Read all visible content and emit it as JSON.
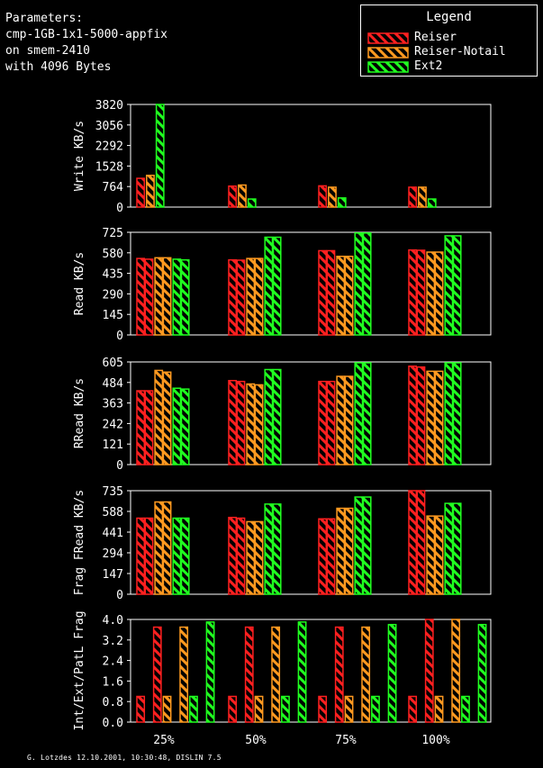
{
  "params": {
    "lines": [
      "Parameters:",
      "cmp-1GB-1x1-5000-appfix",
      "on smem-2410",
      "with 4096 Bytes"
    ]
  },
  "legend": {
    "title": "Legend",
    "entries": [
      {
        "label": "Reiser",
        "color": "#ff2020"
      },
      {
        "label": "Reiser-Notail",
        "color": "#ff9a20"
      },
      {
        "label": "Ext2",
        "color": "#20ff20"
      }
    ]
  },
  "footer": "G. Lotzdes 12.10.2001, 10:30:48, DISLIN 7.5",
  "chart_data": [
    {
      "type": "bar",
      "ylabel": "Write KB/s",
      "yticks": [
        "0",
        "764",
        "1528",
        "2292",
        "3056",
        "3820"
      ],
      "ylim": [
        0,
        3820
      ],
      "categories": [
        "25%",
        "50%",
        "75%",
        "100%"
      ],
      "series": [
        {
          "name": "Reiser",
          "values": [
            [
              1070
            ],
            [
              780
            ],
            [
              790
            ],
            [
              740
            ]
          ]
        },
        {
          "name": "Reiser-Notail",
          "values": [
            [
              1180
            ],
            [
              820
            ],
            [
              740
            ],
            [
              740
            ]
          ]
        },
        {
          "name": "Ext2",
          "values": [
            [
              3820
            ],
            [
              300
            ],
            [
              340
            ],
            [
              300
            ]
          ]
        }
      ]
    },
    {
      "type": "bar",
      "ylabel": "Read KB/s",
      "yticks": [
        "0",
        "145",
        "290",
        "435",
        "580",
        "725"
      ],
      "ylim": [
        0,
        725
      ],
      "categories": [
        "25%",
        "50%",
        "75%",
        "100%"
      ],
      "series": [
        {
          "name": "Reiser",
          "values": [
            [
              540,
              535
            ],
            [
              530,
              528
            ],
            [
              595,
              595
            ],
            [
              600,
              598
            ]
          ]
        },
        {
          "name": "Reiser-Notail",
          "values": [
            [
              545,
              545
            ],
            [
              540,
              540
            ],
            [
              555,
              555
            ],
            [
              585,
              585
            ]
          ]
        },
        {
          "name": "Ext2",
          "values": [
            [
              535,
              530
            ],
            [
              690,
              690
            ],
            [
              720,
              720
            ],
            [
              700,
              700
            ]
          ]
        }
      ]
    },
    {
      "type": "bar",
      "ylabel": "RRead KB/s",
      "yticks": [
        "0",
        "121",
        "242",
        "363",
        "484",
        "605"
      ],
      "ylim": [
        0,
        605
      ],
      "categories": [
        "25%",
        "50%",
        "75%",
        "100%"
      ],
      "series": [
        {
          "name": "Reiser",
          "values": [
            [
              435,
              435
            ],
            [
              495,
              490
            ],
            [
              490,
              490
            ],
            [
              580,
              575
            ]
          ]
        },
        {
          "name": "Reiser-Notail",
          "values": [
            [
              555,
              545
            ],
            [
              475,
              470
            ],
            [
              520,
              520
            ],
            [
              550,
              550
            ]
          ]
        },
        {
          "name": "Ext2",
          "values": [
            [
              450,
              445
            ],
            [
              560,
              560
            ],
            [
              600,
              600
            ],
            [
              600,
              600
            ]
          ]
        }
      ]
    },
    {
      "type": "bar",
      "ylabel": "Frag FRead KB/s",
      "yticks": [
        "0",
        "147",
        "294",
        "441",
        "588",
        "735"
      ],
      "ylim": [
        0,
        735
      ],
      "categories": [
        "25%",
        "50%",
        "75%",
        "100%"
      ],
      "series": [
        {
          "name": "Reiser",
          "values": [
            [
              540,
              540
            ],
            [
              545,
              540
            ],
            [
              535,
              535
            ],
            [
              735,
              735
            ]
          ]
        },
        {
          "name": "Reiser-Notail",
          "values": [
            [
              655,
              655
            ],
            [
              515,
              515
            ],
            [
              610,
              610
            ],
            [
              555,
              555
            ]
          ]
        },
        {
          "name": "Ext2",
          "values": [
            [
              540,
              540
            ],
            [
              640,
              640
            ],
            [
              690,
              690
            ],
            [
              645,
              645
            ]
          ]
        }
      ]
    },
    {
      "type": "bar",
      "ylabel": "Int/Ext/PatL Frag",
      "yticks": [
        "0.0",
        "0.8",
        "1.6",
        "2.4",
        "3.2",
        "4.0"
      ],
      "ylim": [
        0,
        4.0
      ],
      "categories": [
        "25%",
        "50%",
        "75%",
        "100%"
      ],
      "series": [
        {
          "name": "Reiser",
          "values": [
            [
              1.0,
              0.0,
              3.7
            ],
            [
              1.0,
              0.0,
              3.7
            ],
            [
              1.0,
              0.0,
              3.7
            ],
            [
              1.0,
              0.0,
              4.0
            ]
          ]
        },
        {
          "name": "Reiser-Notail",
          "values": [
            [
              1.0,
              0.0,
              3.7
            ],
            [
              1.0,
              0.0,
              3.7
            ],
            [
              1.0,
              0.0,
              3.7
            ],
            [
              1.0,
              0.0,
              4.0
            ]
          ]
        },
        {
          "name": "Ext2",
          "values": [
            [
              1.0,
              0.0,
              3.9
            ],
            [
              1.0,
              0.0,
              3.9
            ],
            [
              1.0,
              0.0,
              3.8
            ],
            [
              1.0,
              0.0,
              3.8
            ]
          ]
        }
      ]
    }
  ]
}
